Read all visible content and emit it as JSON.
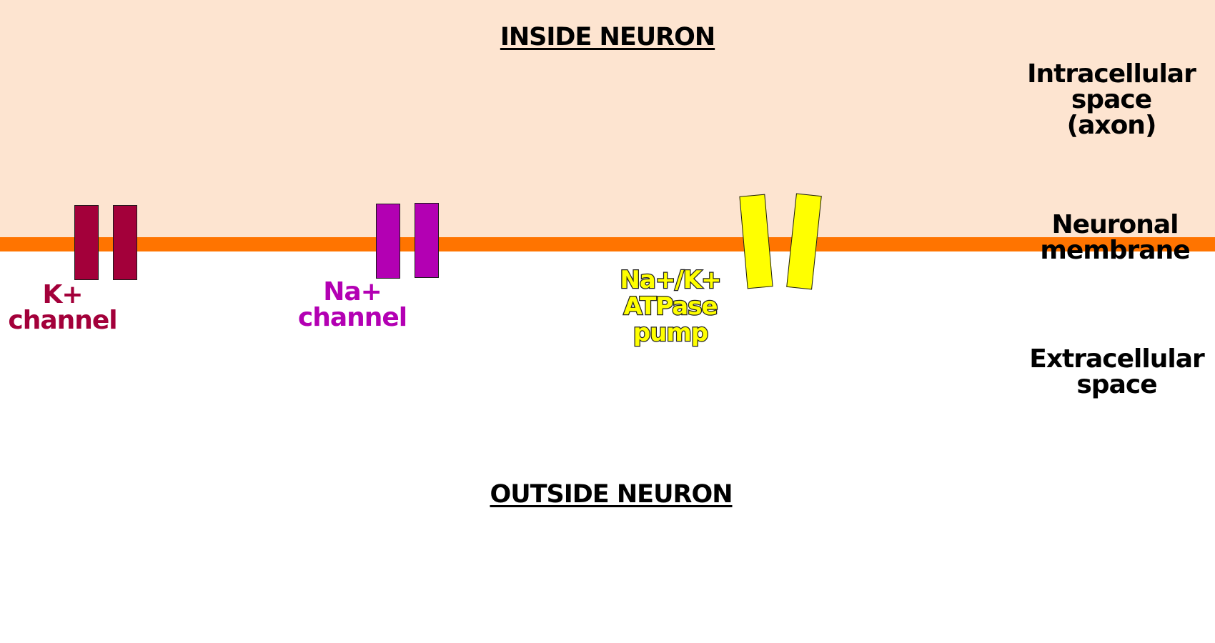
{
  "colors": {
    "intracellular_bg": "#fde4d0",
    "membrane": "#ff7400",
    "k_channel": "#a3003a",
    "na_channel": "#b300b3",
    "pump": "#ffff00",
    "text": "#000000"
  },
  "inside_title": "INSIDE NEURON",
  "outside_title": "OUTSIDE NEURON",
  "regions": {
    "intracellular": [
      "Intracellular",
      "space",
      "(axon)"
    ],
    "membrane": [
      "Neuronal",
      "membrane"
    ],
    "extracellular": [
      "Extracellular",
      "space"
    ]
  },
  "channels": {
    "k": [
      "K+",
      "channel"
    ],
    "na": [
      "Na+",
      "channel"
    ],
    "pump": [
      "Na+/K+",
      "ATPase",
      "pump"
    ]
  }
}
